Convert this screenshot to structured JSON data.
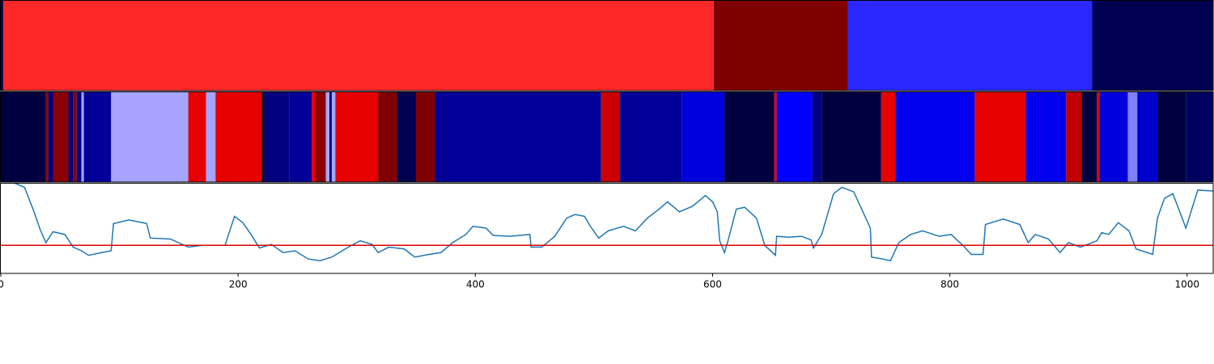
{
  "chart_data": [
    {
      "type": "segments",
      "xlim": [
        0,
        1022
      ],
      "bins": [
        0,
        2,
        601,
        714,
        920,
        1022
      ],
      "colors": [
        "#000050",
        "#ff2828",
        "#800000",
        "#2828ff",
        "#000050"
      ]
    },
    {
      "type": "segments",
      "xlim": [
        0,
        1022
      ],
      "bins": [
        0,
        38,
        40,
        44,
        57,
        61,
        64,
        68,
        70,
        93,
        158,
        173,
        181,
        220,
        223,
        243,
        262,
        265,
        274,
        277,
        279,
        282,
        318,
        334,
        350,
        366,
        506,
        522,
        574,
        610,
        652,
        654,
        684,
        692,
        742,
        754,
        821,
        864,
        898,
        911,
        924,
        926,
        950,
        958,
        975,
        999,
        1022
      ],
      "colors": [
        "#000040",
        "#8b0000",
        "#000080",
        "#8b0000",
        "#000080",
        "#8b0000",
        "#000099",
        "#a5a5ff",
        "#000099",
        "#a5a5ff",
        "#e60000",
        "#a5a5ff",
        "#e60000",
        "#000040",
        "#000080",
        "#000099",
        "#e60000",
        "#8b0000",
        "#a5a5ff",
        "#000080",
        "#a5a5ff",
        "#e60000",
        "#800000",
        "#000050",
        "#800000",
        "#000099",
        "#cc0000",
        "#000099",
        "#0000dd",
        "#000040",
        "#e60000",
        "#0000ff",
        "#000080",
        "#000040",
        "#e60000",
        "#0000ee",
        "#e60000",
        "#0000ee",
        "#c00000",
        "#000040",
        "#e60000",
        "#0000dd",
        "#8080ff",
        "#0000cc",
        "#000040",
        "#000060"
      ]
    },
    {
      "type": "line",
      "xlim": [
        0,
        1022
      ],
      "ylim": [
        0,
        1
      ],
      "xticks": [
        0,
        200,
        400,
        600,
        800,
        1000
      ],
      "hline": 0.31,
      "hline_color": "#e00000",
      "series": [
        {
          "color": "#1f77b4",
          "x": [
            0,
            11,
            20,
            28,
            33,
            38,
            44,
            54,
            61,
            68,
            74,
            85,
            93,
            95,
            108,
            123,
            126,
            143,
            158,
            170,
            189,
            197,
            204,
            211,
            218,
            228,
            238,
            248,
            259,
            269,
            279,
            293,
            303,
            313,
            318,
            327,
            340,
            349,
            361,
            371,
            381,
            392,
            398,
            409,
            415,
            429,
            446,
            447,
            456,
            467,
            477,
            484,
            492,
            497,
            504,
            512,
            525,
            535,
            545,
            555,
            562,
            572,
            583,
            594,
            600,
            604,
            606,
            610,
            613,
            620,
            627,
            637,
            644,
            653,
            654,
            664,
            675,
            683,
            685,
            692,
            702,
            709,
            719,
            726,
            733,
            734,
            743,
            750,
            757,
            767,
            777,
            791,
            801,
            811,
            818,
            828,
            830,
            845,
            859,
            866,
            872,
            883,
            893,
            900,
            910,
            916,
            924,
            928,
            934,
            942,
            951,
            957,
            971,
            975,
            981,
            988,
            999,
            1009,
            1022
          ],
          "values": [
            1.0,
            1.0,
            0.95,
            0.68,
            0.49,
            0.34,
            0.46,
            0.43,
            0.29,
            0.25,
            0.2,
            0.23,
            0.25,
            0.55,
            0.59,
            0.55,
            0.39,
            0.38,
            0.29,
            0.31,
            0.31,
            0.63,
            0.56,
            0.43,
            0.28,
            0.32,
            0.23,
            0.25,
            0.16,
            0.14,
            0.18,
            0.29,
            0.36,
            0.32,
            0.23,
            0.29,
            0.27,
            0.18,
            0.21,
            0.23,
            0.34,
            0.43,
            0.52,
            0.5,
            0.42,
            0.41,
            0.43,
            0.29,
            0.29,
            0.41,
            0.61,
            0.65,
            0.63,
            0.52,
            0.39,
            0.47,
            0.52,
            0.47,
            0.61,
            0.71,
            0.79,
            0.68,
            0.74,
            0.86,
            0.79,
            0.68,
            0.36,
            0.23,
            0.36,
            0.71,
            0.73,
            0.61,
            0.31,
            0.2,
            0.41,
            0.4,
            0.41,
            0.37,
            0.28,
            0.43,
            0.88,
            0.95,
            0.9,
            0.7,
            0.5,
            0.18,
            0.16,
            0.14,
            0.34,
            0.43,
            0.47,
            0.41,
            0.43,
            0.31,
            0.21,
            0.21,
            0.54,
            0.6,
            0.54,
            0.34,
            0.43,
            0.38,
            0.23,
            0.34,
            0.29,
            0.32,
            0.36,
            0.45,
            0.43,
            0.56,
            0.47,
            0.27,
            0.21,
            0.61,
            0.83,
            0.88,
            0.5,
            0.92,
            0.91
          ]
        }
      ]
    }
  ]
}
